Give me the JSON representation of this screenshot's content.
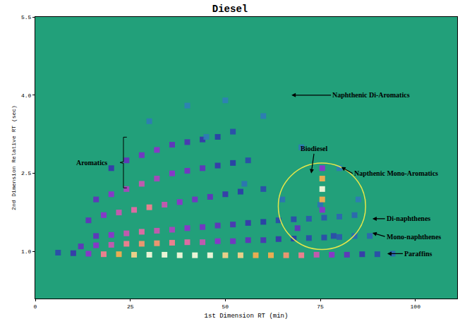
{
  "chart_data": {
    "type": "scatter",
    "title": "Diesel",
    "x_label": "1st Dimension RT (min)",
    "y_label": "2nd Dimension Relative RT (sec)",
    "xlim": [
      0,
      111
    ],
    "xticks": [
      0,
      25,
      50,
      75,
      100
    ],
    "ylim": [
      0.1,
      5.5
    ],
    "yticks": [
      {
        "value": 1,
        "label": "1.0"
      },
      2.5,
      {
        "value": 4,
        "label": "4.0"
      },
      5.5
    ],
    "grid": false,
    "x": [
      6,
      10,
      14,
      18,
      22,
      26,
      30,
      34,
      38,
      42,
      46,
      50,
      54,
      58,
      62,
      66,
      70,
      74,
      78,
      82,
      86,
      90,
      94,
      12,
      16,
      20,
      24,
      28,
      32,
      36,
      40,
      44,
      48,
      52,
      56,
      60,
      64,
      68,
      72,
      76,
      80,
      84,
      88,
      16,
      20,
      24,
      28,
      32,
      36,
      40,
      44,
      48,
      52,
      56,
      60,
      64,
      68,
      72,
      76,
      80,
      84,
      14,
      18,
      22,
      26,
      30,
      34,
      38,
      42,
      46,
      50,
      54,
      60,
      16,
      20,
      24,
      28,
      32,
      36,
      40,
      44,
      48,
      52,
      56,
      20,
      24,
      28,
      32,
      36,
      40,
      44,
      48,
      52,
      30,
      40,
      50,
      60,
      70,
      80,
      55,
      65,
      75,
      45,
      85,
      75.5,
      75.5,
      75.5,
      75.5,
      75.5,
      69,
      78.5
    ],
    "values": [
      0.98,
      0.97,
      0.96,
      0.95,
      0.95,
      0.94,
      0.94,
      0.94,
      0.93,
      0.93,
      0.93,
      0.93,
      0.93,
      0.93,
      0.93,
      0.93,
      0.93,
      0.94,
      0.94,
      0.94,
      0.95,
      0.95,
      0.96,
      1.1,
      1.12,
      1.13,
      1.15,
      1.15,
      1.16,
      1.17,
      1.18,
      1.18,
      1.2,
      1.2,
      1.22,
      1.22,
      1.24,
      1.25,
      1.26,
      1.27,
      1.28,
      1.3,
      1.3,
      1.3,
      1.32,
      1.35,
      1.38,
      1.4,
      1.42,
      1.45,
      1.47,
      1.5,
      1.52,
      1.55,
      1.57,
      1.6,
      1.62,
      1.63,
      1.65,
      1.67,
      1.7,
      1.6,
      1.7,
      1.75,
      1.8,
      1.85,
      1.9,
      1.95,
      2.0,
      2.05,
      2.1,
      2.15,
      2.2,
      2.0,
      2.1,
      2.2,
      2.3,
      2.4,
      2.5,
      2.55,
      2.6,
      2.65,
      2.7,
      2.75,
      2.6,
      2.75,
      2.85,
      2.95,
      3.05,
      3.1,
      3.15,
      3.2,
      3.3,
      3.5,
      3.8,
      3.9,
      3.6,
      3.0,
      2.6,
      2.3,
      2.0,
      1.9,
      3.2,
      2.0,
      2.6,
      2.4,
      2.2,
      2.0,
      1.8,
      1.45,
      1.3
    ],
    "intensity": [
      0.3,
      0.4,
      0.6,
      0.8,
      0.9,
      0.95,
      1,
      1,
      1,
      1,
      1,
      0.95,
      0.95,
      0.9,
      0.9,
      0.85,
      0.8,
      0.7,
      0.6,
      0.5,
      0.4,
      0.3,
      0.2,
      0.5,
      0.6,
      0.7,
      0.8,
      0.85,
      0.85,
      0.8,
      0.75,
      0.7,
      0.6,
      0.55,
      0.5,
      0.45,
      0.4,
      0.35,
      0.3,
      0.3,
      0.25,
      0.2,
      0.2,
      0.5,
      0.6,
      0.7,
      0.75,
      0.7,
      0.65,
      0.6,
      0.55,
      0.5,
      0.45,
      0.4,
      0.35,
      0.3,
      0.3,
      0.25,
      0.25,
      0.2,
      0.2,
      0.5,
      0.6,
      0.7,
      0.75,
      0.8,
      0.7,
      0.6,
      0.55,
      0.5,
      0.4,
      0.35,
      0.3,
      0.5,
      0.6,
      0.65,
      0.7,
      0.65,
      0.6,
      0.55,
      0.5,
      0.4,
      0.35,
      0.3,
      0.4,
      0.5,
      0.55,
      0.6,
      0.5,
      0.45,
      0.4,
      0.35,
      0.3,
      0.12,
      0.1,
      0.1,
      0.12,
      0.12,
      0.12,
      0.15,
      0.15,
      0.15,
      0.12,
      0.12,
      0.6,
      0.9,
      1,
      0.9,
      0.6,
      0.5,
      0.3
    ],
    "annotations": [
      {
        "text": "Naphthenic Di-Aromatics",
        "x": 77.8,
        "y": 4.0,
        "arrow_x": 67.4,
        "arrow_y": 4.0
      },
      {
        "text": "Aromatics",
        "x": 19.3,
        "y": 2.71
      },
      {
        "text": "Biodiesel",
        "x": 73.5,
        "y": 2.97,
        "arrow_x": 72.6,
        "arrow_y": 2.5
      },
      {
        "text": "Napthenic Mono-Aromatics",
        "x": 83.5,
        "y": 2.5,
        "arrow_x": 80.5,
        "arrow_y": 2.62
      },
      {
        "text": "Di-naphthenes",
        "x": 92,
        "y": 1.63,
        "arrow_x": 88.7,
        "arrow_y": 1.63
      },
      {
        "text": "Mono-naphthenes",
        "x": 92,
        "y": 1.29,
        "arrow_x": 88.7,
        "arrow_y": 1.36
      },
      {
        "text": "Paraffins",
        "x": 96.7,
        "y": 0.96,
        "arrow_x": 92.6,
        "arrow_y": 0.96
      }
    ]
  }
}
